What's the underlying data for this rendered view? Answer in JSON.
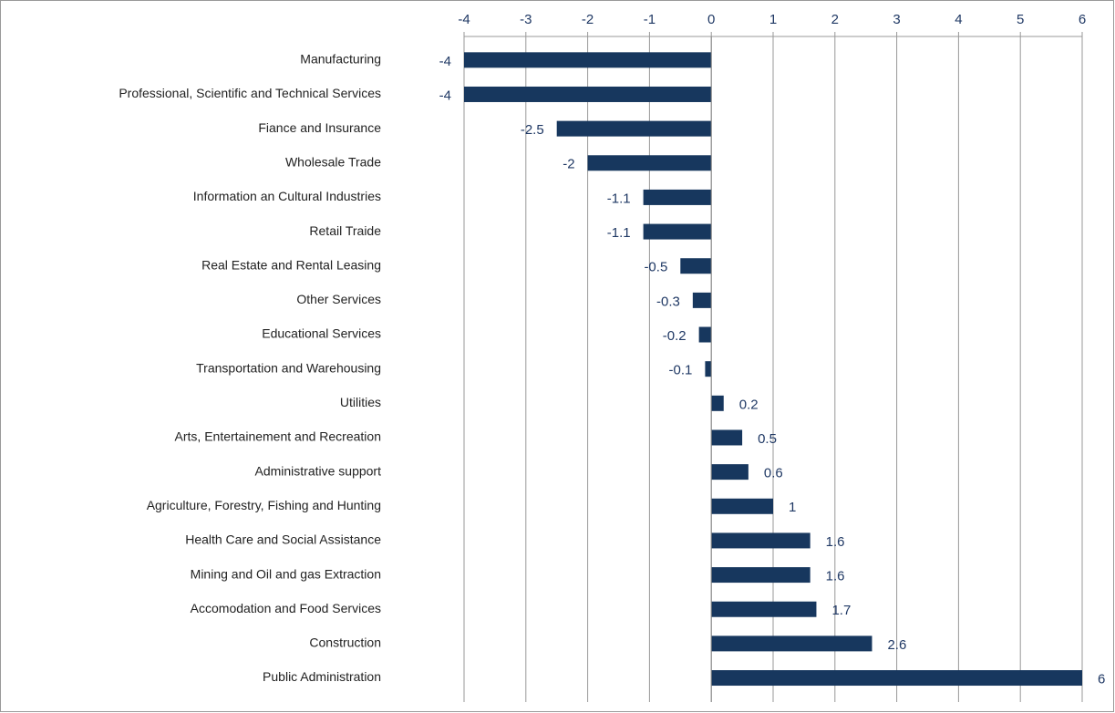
{
  "chart_data": {
    "type": "bar",
    "orientation": "horizontal",
    "categories": [
      "Manufacturing",
      "Professional, Scientific and Technical Services",
      "Fiance and Insurance",
      "Wholesale Trade",
      "Information an Cultural Industries",
      "Retail Traide",
      "Real Estate and Rental Leasing",
      "Other Services",
      "Educational Services",
      "Transportation and Warehousing",
      "Utilities",
      "Arts, Entertainement and Recreation",
      "Administrative support",
      "Agriculture, Forestry, Fishing and Hunting",
      "Health Care and Social Assistance",
      "Mining and Oil and gas Extraction",
      "Accomodation and Food Services",
      "Construction",
      "Public Administration"
    ],
    "values": [
      -4,
      -4,
      -2.5,
      -2,
      -1.1,
      -1.1,
      -0.5,
      -0.3,
      -0.2,
      -0.1,
      0.2,
      0.5,
      0.6,
      1,
      1.6,
      1.6,
      1.7,
      2.6,
      6
    ],
    "color": "#17375e",
    "xlim": [
      -4,
      6
    ],
    "xticks": [
      -4,
      -3,
      -2,
      -1,
      0,
      1,
      2,
      3,
      4,
      5,
      6
    ],
    "grid": true,
    "axis_position": "top"
  }
}
